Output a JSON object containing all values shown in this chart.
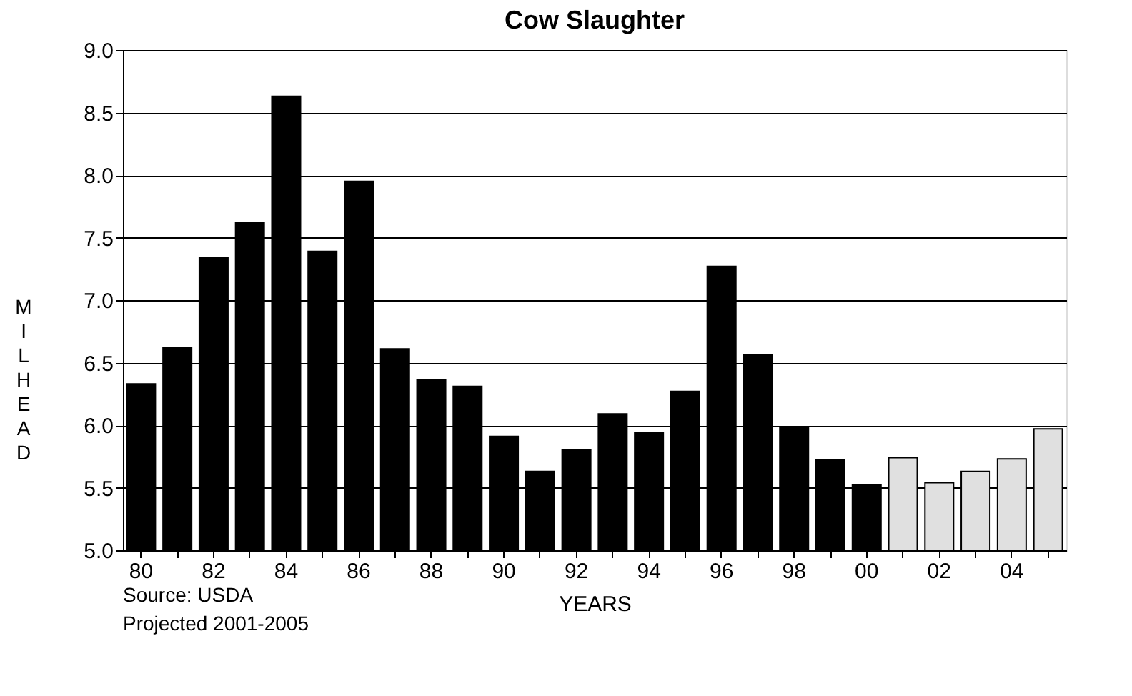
{
  "chart_data": {
    "type": "bar",
    "title": "Cow Slaughter",
    "xlabel": "YEARS",
    "ylabel": "MIL HEAD",
    "categories": [
      "80",
      null,
      "82",
      null,
      "84",
      null,
      "86",
      null,
      "88",
      null,
      "90",
      null,
      "92",
      null,
      "94",
      null,
      "96",
      null,
      "98",
      null,
      "00",
      null,
      "02",
      null,
      "04",
      null
    ],
    "values": [
      6.33,
      6.62,
      7.34,
      7.62,
      8.63,
      7.39,
      7.95,
      6.61,
      6.36,
      6.31,
      5.91,
      5.63,
      5.8,
      6.09,
      5.94,
      6.27,
      7.27,
      6.56,
      5.98,
      5.72,
      5.52,
      5.74,
      5.54,
      5.63,
      5.73,
      5.97
    ],
    "colors": [
      "#000000",
      "#000000",
      "#000000",
      "#000000",
      "#000000",
      "#000000",
      "#000000",
      "#000000",
      "#000000",
      "#000000",
      "#000000",
      "#000000",
      "#000000",
      "#000000",
      "#000000",
      "#000000",
      "#000000",
      "#000000",
      "#000000",
      "#000000",
      "#000000",
      "#e0e0e0",
      "#e0e0e0",
      "#e0e0e0",
      "#e0e0e0",
      "#e0e0e0"
    ],
    "ylim": [
      5.0,
      9.0
    ],
    "yticks": [
      {
        "value": 5.0,
        "label": "5.0"
      },
      {
        "value": 5.5,
        "label": "5.5"
      },
      {
        "value": 6.0,
        "label": "6.0"
      },
      {
        "value": 6.5,
        "label": "6.5"
      },
      {
        "value": 7.0,
        "label": "7.0"
      },
      {
        "value": 7.5,
        "label": "7.5"
      },
      {
        "value": 8.0,
        "label": "8.0"
      },
      {
        "value": 8.5,
        "label": "8.5"
      },
      {
        "value": 9.0,
        "label": "9.0"
      }
    ],
    "grid": "y",
    "annotations": [
      "Source: USDA",
      "Projected 2001-2005"
    ]
  }
}
